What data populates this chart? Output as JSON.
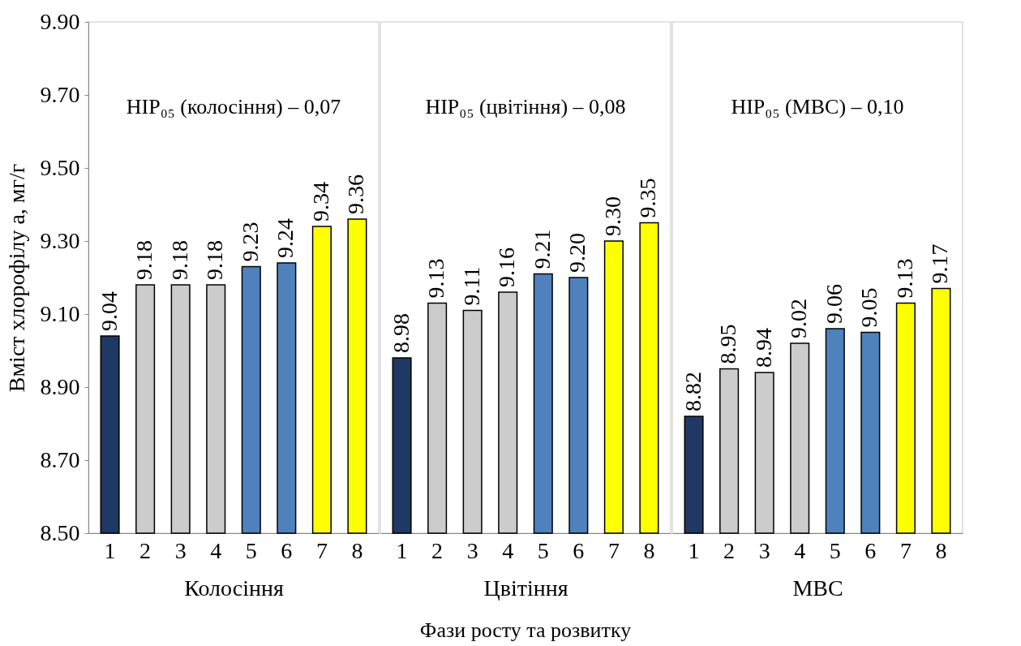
{
  "chart_data": [
    {
      "type": "bar",
      "categories": [
        "1",
        "2",
        "3",
        "4",
        "5",
        "6",
        "7",
        "8"
      ],
      "values": [
        9.04,
        9.18,
        9.18,
        9.18,
        9.23,
        9.24,
        9.34,
        9.36
      ],
      "value_labels": [
        "9.04",
        "9.18",
        "9.18",
        "9.18",
        "9.23",
        "9.24",
        "9.34",
        "9.36"
      ],
      "colors": [
        "#1f3864",
        "#cccccc",
        "#cccccc",
        "#cccccc",
        "#4f81bd",
        "#4f81bd",
        "#ffff00",
        "#ffff00"
      ],
      "ylim": [
        8.5,
        9.9
      ],
      "yticks": [
        {
          "value": 8.5,
          "label": "8.50"
        },
        {
          "value": 8.7,
          "label": "8.70"
        },
        {
          "value": 8.9,
          "label": "8.90"
        },
        {
          "value": 9.1,
          "label": "9.10"
        },
        {
          "value": 9.3,
          "label": "9.30"
        },
        {
          "value": 9.5,
          "label": "9.50"
        },
        {
          "value": 9.7,
          "label": "9.70"
        },
        {
          "value": 9.9,
          "label": "9.90"
        }
      ],
      "ylabel": "Вміст хлорофілу a, мг/г",
      "xlabel": "Колосіння",
      "annotations": [
        "HIP₀₅ (колосіння) – 0,07"
      ],
      "grid": false,
      "legend": false
    },
    {
      "type": "bar",
      "categories": [
        "1",
        "2",
        "3",
        "4",
        "5",
        "6",
        "7",
        "8"
      ],
      "values": [
        8.98,
        9.13,
        9.11,
        9.16,
        9.21,
        9.2,
        9.3,
        9.35
      ],
      "value_labels": [
        "8.98",
        "9.13",
        "9.11",
        "9.16",
        "9.21",
        "9.20",
        "9.30",
        "9.35"
      ],
      "colors": [
        "#1f3864",
        "#cccccc",
        "#cccccc",
        "#cccccc",
        "#4f81bd",
        "#4f81bd",
        "#ffff00",
        "#ffff00"
      ],
      "ylim": [
        8.5,
        9.9
      ],
      "xlabel": "Цвітіння",
      "annotations": [
        "HIP₀₅ (цвітіння) – 0,08",
        "Фази росту та розвитку"
      ],
      "tick_labels": "x",
      "grid": false,
      "legend": false
    },
    {
      "type": "bar",
      "categories": [
        "1",
        "2",
        "3",
        "4",
        "5",
        "6",
        "7",
        "8"
      ],
      "values": [
        8.82,
        8.95,
        8.94,
        9.02,
        9.06,
        9.05,
        9.13,
        9.17
      ],
      "value_labels": [
        "8.82",
        "8.95",
        "8.94",
        "9.02",
        "9.06",
        "9.05",
        "9.13",
        "9.17"
      ],
      "colors": [
        "#1f3864",
        "#cccccc",
        "#cccccc",
        "#cccccc",
        "#4f81bd",
        "#4f81bd",
        "#ffff00",
        "#ffff00"
      ],
      "ylim": [
        8.5,
        9.9
      ],
      "xlabel": "МВС",
      "annotations": [
        "HIP₀₅ (МВС) – 0,10"
      ],
      "tick_labels": "x",
      "grid": false,
      "legend": false
    }
  ]
}
